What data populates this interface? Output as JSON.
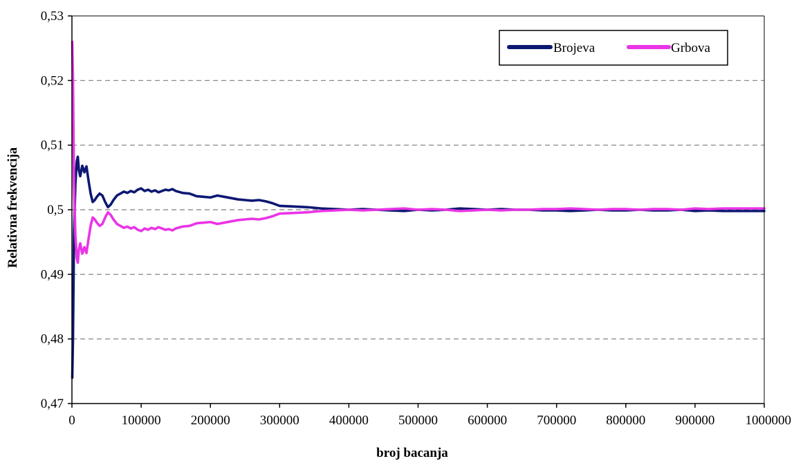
{
  "chart_data": {
    "type": "line",
    "title": "",
    "xlabel": "broj bacanja",
    "ylabel": "Relativna frekvencija",
    "xlim": [
      0,
      1000000
    ],
    "ylim": [
      0.47,
      0.53
    ],
    "x_ticks": [
      0,
      100000,
      200000,
      300000,
      400000,
      500000,
      600000,
      700000,
      800000,
      900000,
      1000000
    ],
    "x_tick_labels": [
      "0",
      "100000",
      "200000",
      "300000",
      "400000",
      "500000",
      "600000",
      "700000",
      "800000",
      "900000",
      "1000000"
    ],
    "y_ticks": [
      0.47,
      0.48,
      0.49,
      0.5,
      0.51,
      0.52,
      0.53
    ],
    "y_tick_labels": [
      "0,47",
      "0,48",
      "0,49",
      "0,5",
      "0,51",
      "0,52",
      "0,53"
    ],
    "grid": "horizontal dashed",
    "legend_position": "top-right",
    "series": [
      {
        "name": "Brojeva",
        "color": "#0d1872",
        "x": [
          500,
          1500,
          3000,
          5000,
          7000,
          8500,
          10000,
          12000,
          15000,
          18000,
          21000,
          24000,
          27000,
          30000,
          33000,
          36000,
          40000,
          44000,
          48000,
          52000,
          56000,
          60000,
          65000,
          70000,
          75000,
          80000,
          85000,
          90000,
          95000,
          100000,
          105000,
          110000,
          115000,
          120000,
          125000,
          130000,
          135000,
          140000,
          145000,
          150000,
          160000,
          170000,
          180000,
          190000,
          200000,
          210000,
          220000,
          230000,
          240000,
          250000,
          260000,
          270000,
          280000,
          290000,
          300000,
          320000,
          340000,
          360000,
          380000,
          400000,
          420000,
          440000,
          460000,
          480000,
          500000,
          520000,
          540000,
          560000,
          580000,
          600000,
          620000,
          640000,
          660000,
          680000,
          700000,
          720000,
          740000,
          760000,
          780000,
          800000,
          820000,
          840000,
          860000,
          880000,
          900000,
          920000,
          940000,
          960000,
          980000,
          1000000
        ],
        "values": [
          0.474,
          0.48,
          0.496,
          0.504,
          0.5075,
          0.5082,
          0.5062,
          0.5052,
          0.5068,
          0.5058,
          0.5067,
          0.5045,
          0.5025,
          0.5012,
          0.5015,
          0.502,
          0.5025,
          0.5022,
          0.5012,
          0.5004,
          0.5008,
          0.5015,
          0.5022,
          0.5025,
          0.5028,
          0.5026,
          0.5029,
          0.5027,
          0.5031,
          0.5033,
          0.5029,
          0.5031,
          0.5028,
          0.503,
          0.5027,
          0.5029,
          0.5031,
          0.503,
          0.5032,
          0.5029,
          0.5026,
          0.5025,
          0.5021,
          0.502,
          0.5019,
          0.5022,
          0.502,
          0.5018,
          0.5016,
          0.5015,
          0.5014,
          0.5015,
          0.5013,
          0.501,
          0.5006,
          0.5005,
          0.5004,
          0.5002,
          0.5001,
          0.5,
          0.5001,
          0.5,
          0.4999,
          0.4998,
          0.5,
          0.4999,
          0.5,
          0.5002,
          0.5001,
          0.5,
          0.5001,
          0.5,
          0.5,
          0.4999,
          0.4999,
          0.4998,
          0.4999,
          0.5,
          0.4999,
          0.4999,
          0.5,
          0.4999,
          0.4999,
          0.5,
          0.4998,
          0.4999,
          0.4998,
          0.4998,
          0.4998,
          0.4998
        ]
      },
      {
        "name": "Grbova",
        "color": "#ea34e6",
        "x": [
          500,
          1500,
          3000,
          5000,
          7000,
          8500,
          10000,
          12000,
          15000,
          18000,
          21000,
          24000,
          27000,
          30000,
          33000,
          36000,
          40000,
          44000,
          48000,
          52000,
          56000,
          60000,
          65000,
          70000,
          75000,
          80000,
          85000,
          90000,
          95000,
          100000,
          105000,
          110000,
          115000,
          120000,
          125000,
          130000,
          135000,
          140000,
          145000,
          150000,
          160000,
          170000,
          180000,
          190000,
          200000,
          210000,
          220000,
          230000,
          240000,
          250000,
          260000,
          270000,
          280000,
          290000,
          300000,
          320000,
          340000,
          360000,
          380000,
          400000,
          420000,
          440000,
          460000,
          480000,
          500000,
          520000,
          540000,
          560000,
          580000,
          600000,
          620000,
          640000,
          660000,
          680000,
          700000,
          720000,
          740000,
          760000,
          780000,
          800000,
          820000,
          840000,
          860000,
          880000,
          900000,
          920000,
          940000,
          960000,
          980000,
          1000000
        ],
        "values": [
          0.526,
          0.52,
          0.504,
          0.496,
          0.4925,
          0.4918,
          0.4938,
          0.4948,
          0.4932,
          0.4942,
          0.4933,
          0.4955,
          0.4975,
          0.4988,
          0.4985,
          0.498,
          0.4975,
          0.4978,
          0.4988,
          0.4996,
          0.4992,
          0.4985,
          0.4978,
          0.4975,
          0.4972,
          0.4974,
          0.4971,
          0.4973,
          0.4969,
          0.4967,
          0.4971,
          0.4969,
          0.4972,
          0.497,
          0.4973,
          0.4971,
          0.4969,
          0.497,
          0.4968,
          0.4971,
          0.4974,
          0.4975,
          0.4979,
          0.498,
          0.4981,
          0.4978,
          0.498,
          0.4982,
          0.4984,
          0.4985,
          0.4986,
          0.4985,
          0.4987,
          0.499,
          0.4994,
          0.4995,
          0.4996,
          0.4998,
          0.4999,
          0.5,
          0.4999,
          0.5,
          0.5001,
          0.5002,
          0.5,
          0.5001,
          0.5,
          0.4998,
          0.4999,
          0.5,
          0.4999,
          0.5,
          0.5,
          0.5001,
          0.5001,
          0.5002,
          0.5001,
          0.5,
          0.5001,
          0.5001,
          0.5,
          0.5001,
          0.5001,
          0.5,
          0.5002,
          0.5001,
          0.5002,
          0.5002,
          0.5002,
          0.5002
        ]
      }
    ]
  }
}
